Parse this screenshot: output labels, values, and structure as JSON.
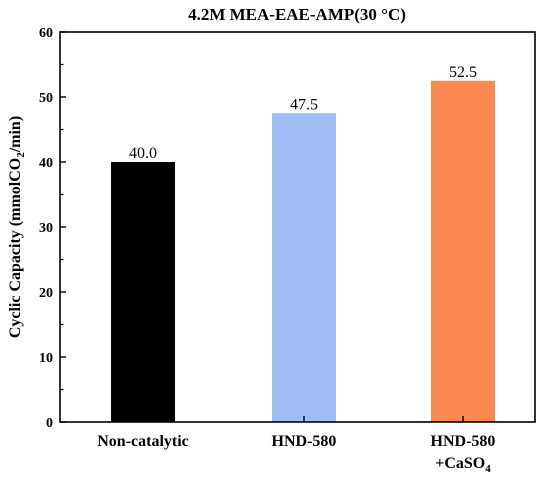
{
  "chart_data": {
    "type": "bar",
    "title": "4.2M MEA-EAE-AMP(30 °C)",
    "ylabel": "Cyclic Capacity (mmolCO2/min)",
    "ylabel_parts": {
      "main": "Cyclic Capacity (mmolCO",
      "sub": "2",
      "end": "/min)"
    },
    "xlabel": "",
    "ylim": [
      0,
      60
    ],
    "yticks": [
      "0",
      "10",
      "20",
      "30",
      "40",
      "50",
      "60"
    ],
    "categories": [
      "Non-catalytic",
      "HND-580",
      "HND-580 +CaSO4"
    ],
    "category_labels": [
      {
        "line1": "Non-catalytic"
      },
      {
        "line1": "HND-580"
      },
      {
        "line1": "HND-580",
        "line2_main": "+CaSO",
        "line2_sub": "4"
      }
    ],
    "values": [
      40.0,
      47.5,
      52.5
    ],
    "data_labels": [
      "40.0",
      "47.5",
      "52.5"
    ],
    "colors": [
      "#000000",
      "#9ebdf5",
      "#fb8a52"
    ],
    "grid": false,
    "legend": "none"
  }
}
